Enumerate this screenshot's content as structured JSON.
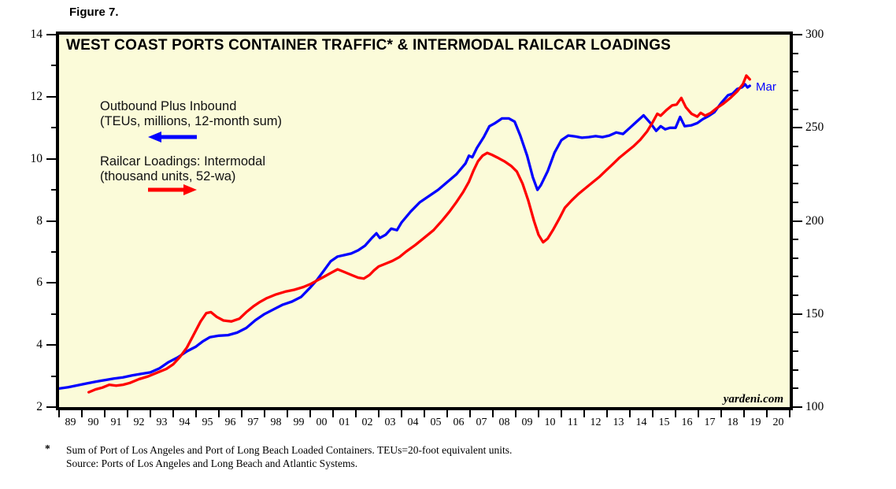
{
  "figure_label": "Figure 7.",
  "chart_data": {
    "type": "line",
    "title": "WEST COAST PORTS CONTAINER TRAFFIC* & INTERMODAL RAILCAR LOADINGS",
    "plot_bg_color": "#FBFBD9",
    "watermark": "yardeni.com",
    "x_axis": {
      "start_year": 1989,
      "end_year": 2021,
      "labels": [
        "89",
        "90",
        "91",
        "92",
        "93",
        "94",
        "95",
        "96",
        "97",
        "98",
        "99",
        "00",
        "01",
        "02",
        "03",
        "04",
        "05",
        "06",
        "07",
        "08",
        "09",
        "10",
        "11",
        "12",
        "13",
        "14",
        "15",
        "16",
        "17",
        "18",
        "19",
        "20"
      ]
    },
    "left_axis": {
      "min": 2,
      "max": 14,
      "major_ticks": [
        2,
        4,
        6,
        8,
        10,
        12,
        14
      ],
      "minor_step": 1
    },
    "right_axis": {
      "min": 100,
      "max": 300,
      "major_ticks": [
        100,
        150,
        200,
        250,
        300
      ],
      "minor_step": 10
    },
    "annotations": [
      {
        "text": "Mar",
        "color": "#0000FF"
      }
    ],
    "series": [
      {
        "name": "west-coast-ports-container-traffic",
        "legend_lines": [
          "Outbound Plus Inbound",
          "(TEUs, millions, 12-month sum)"
        ],
        "axis": "left",
        "color": "#0000FF",
        "arrow_direction": "left",
        "points": [
          [
            1989.0,
            2.6
          ],
          [
            1989.4,
            2.64
          ],
          [
            1989.8,
            2.7
          ],
          [
            1990.2,
            2.76
          ],
          [
            1990.6,
            2.82
          ],
          [
            1991.0,
            2.87
          ],
          [
            1991.4,
            2.92
          ],
          [
            1991.8,
            2.96
          ],
          [
            1992.2,
            3.02
          ],
          [
            1992.6,
            3.07
          ],
          [
            1993.0,
            3.12
          ],
          [
            1993.4,
            3.25
          ],
          [
            1993.8,
            3.45
          ],
          [
            1994.2,
            3.6
          ],
          [
            1994.6,
            3.8
          ],
          [
            1995.0,
            3.95
          ],
          [
            1995.3,
            4.12
          ],
          [
            1995.6,
            4.25
          ],
          [
            1996.0,
            4.3
          ],
          [
            1996.4,
            4.32
          ],
          [
            1996.8,
            4.4
          ],
          [
            1997.2,
            4.55
          ],
          [
            1997.6,
            4.8
          ],
          [
            1998.0,
            5.0
          ],
          [
            1998.4,
            5.15
          ],
          [
            1998.8,
            5.3
          ],
          [
            1999.2,
            5.4
          ],
          [
            1999.6,
            5.55
          ],
          [
            2000.0,
            5.85
          ],
          [
            2000.3,
            6.1
          ],
          [
            2000.6,
            6.4
          ],
          [
            2000.9,
            6.7
          ],
          [
            2001.2,
            6.85
          ],
          [
            2001.5,
            6.9
          ],
          [
            2001.8,
            6.95
          ],
          [
            2002.1,
            7.05
          ],
          [
            2002.4,
            7.2
          ],
          [
            2002.7,
            7.45
          ],
          [
            2002.9,
            7.6
          ],
          [
            2003.05,
            7.45
          ],
          [
            2003.3,
            7.55
          ],
          [
            2003.55,
            7.75
          ],
          [
            2003.8,
            7.7
          ],
          [
            2004.0,
            7.95
          ],
          [
            2004.4,
            8.3
          ],
          [
            2004.8,
            8.6
          ],
          [
            2005.2,
            8.8
          ],
          [
            2005.6,
            9.0
          ],
          [
            2006.0,
            9.25
          ],
          [
            2006.4,
            9.5
          ],
          [
            2006.8,
            9.85
          ],
          [
            2006.95,
            10.1
          ],
          [
            2007.1,
            10.05
          ],
          [
            2007.3,
            10.35
          ],
          [
            2007.6,
            10.7
          ],
          [
            2007.85,
            11.05
          ],
          [
            2008.1,
            11.15
          ],
          [
            2008.4,
            11.3
          ],
          [
            2008.7,
            11.3
          ],
          [
            2008.95,
            11.2
          ],
          [
            2009.2,
            10.75
          ],
          [
            2009.5,
            10.1
          ],
          [
            2009.75,
            9.4
          ],
          [
            2009.95,
            9.0
          ],
          [
            2010.1,
            9.15
          ],
          [
            2010.4,
            9.6
          ],
          [
            2010.7,
            10.2
          ],
          [
            2011.0,
            10.6
          ],
          [
            2011.3,
            10.75
          ],
          [
            2011.6,
            10.72
          ],
          [
            2011.9,
            10.68
          ],
          [
            2012.2,
            10.7
          ],
          [
            2012.5,
            10.73
          ],
          [
            2012.8,
            10.7
          ],
          [
            2013.1,
            10.75
          ],
          [
            2013.4,
            10.85
          ],
          [
            2013.7,
            10.8
          ],
          [
            2014.0,
            11.0
          ],
          [
            2014.3,
            11.2
          ],
          [
            2014.6,
            11.4
          ],
          [
            2014.9,
            11.15
          ],
          [
            2015.15,
            10.9
          ],
          [
            2015.35,
            11.05
          ],
          [
            2015.55,
            10.95
          ],
          [
            2015.75,
            11.0
          ],
          [
            2016.0,
            11.0
          ],
          [
            2016.2,
            11.35
          ],
          [
            2016.4,
            11.05
          ],
          [
            2016.7,
            11.08
          ],
          [
            2016.95,
            11.15
          ],
          [
            2017.2,
            11.28
          ],
          [
            2017.45,
            11.38
          ],
          [
            2017.7,
            11.5
          ],
          [
            2018.0,
            11.8
          ],
          [
            2018.3,
            12.05
          ],
          [
            2018.5,
            12.1
          ],
          [
            2018.7,
            12.25
          ],
          [
            2018.9,
            12.3
          ],
          [
            2019.05,
            12.4
          ],
          [
            2019.15,
            12.3
          ],
          [
            2019.25,
            12.35
          ]
        ]
      },
      {
        "name": "intermodal-railcar-loadings",
        "legend_lines": [
          "Railcar Loadings: Intermodal",
          "(thousand units, 52-wa)"
        ],
        "axis": "right",
        "color": "#FF0000",
        "arrow_direction": "right",
        "points": [
          [
            1990.3,
            108
          ],
          [
            1990.6,
            109.5
          ],
          [
            1990.9,
            110.5
          ],
          [
            1991.2,
            112
          ],
          [
            1991.5,
            111.5
          ],
          [
            1991.8,
            112
          ],
          [
            1992.1,
            113
          ],
          [
            1992.5,
            115
          ],
          [
            1992.9,
            116.5
          ],
          [
            1993.3,
            118.5
          ],
          [
            1993.7,
            120.5
          ],
          [
            1994.0,
            123
          ],
          [
            1994.3,
            127
          ],
          [
            1994.6,
            132
          ],
          [
            1994.9,
            139
          ],
          [
            1995.2,
            146
          ],
          [
            1995.45,
            150.5
          ],
          [
            1995.65,
            151
          ],
          [
            1995.9,
            148.5
          ],
          [
            1996.2,
            146.5
          ],
          [
            1996.55,
            146
          ],
          [
            1996.9,
            147.5
          ],
          [
            1997.2,
            151
          ],
          [
            1997.5,
            154
          ],
          [
            1997.8,
            156.5
          ],
          [
            1998.1,
            158.5
          ],
          [
            1998.5,
            160.5
          ],
          [
            1998.9,
            162
          ],
          [
            1999.3,
            163
          ],
          [
            1999.7,
            164.5
          ],
          [
            2000.0,
            166
          ],
          [
            2000.3,
            168
          ],
          [
            2000.6,
            170
          ],
          [
            2000.9,
            172
          ],
          [
            2001.2,
            174
          ],
          [
            2001.5,
            172.5
          ],
          [
            2001.8,
            171
          ],
          [
            2002.1,
            169.5
          ],
          [
            2002.35,
            169
          ],
          [
            2002.6,
            171
          ],
          [
            2002.8,
            173.5
          ],
          [
            2003.0,
            175.5
          ],
          [
            2003.3,
            177
          ],
          [
            2003.6,
            178.5
          ],
          [
            2003.9,
            180.5
          ],
          [
            2004.2,
            183.5
          ],
          [
            2004.6,
            187
          ],
          [
            2005.0,
            191
          ],
          [
            2005.4,
            195
          ],
          [
            2005.8,
            200.5
          ],
          [
            2006.1,
            205
          ],
          [
            2006.4,
            210
          ],
          [
            2006.7,
            215.5
          ],
          [
            2006.95,
            221
          ],
          [
            2007.15,
            227
          ],
          [
            2007.35,
            232
          ],
          [
            2007.55,
            235
          ],
          [
            2007.75,
            236.5
          ],
          [
            2007.95,
            235.5
          ],
          [
            2008.2,
            234
          ],
          [
            2008.5,
            232
          ],
          [
            2008.8,
            229.5
          ],
          [
            2009.05,
            226.5
          ],
          [
            2009.3,
            220
          ],
          [
            2009.55,
            211
          ],
          [
            2009.8,
            200
          ],
          [
            2010.0,
            192.5
          ],
          [
            2010.2,
            188.5
          ],
          [
            2010.4,
            190.5
          ],
          [
            2010.65,
            195.5
          ],
          [
            2010.9,
            201
          ],
          [
            2011.15,
            207
          ],
          [
            2011.45,
            211
          ],
          [
            2011.75,
            214.5
          ],
          [
            2012.05,
            217.5
          ],
          [
            2012.35,
            220.5
          ],
          [
            2012.65,
            223.5
          ],
          [
            2012.95,
            227
          ],
          [
            2013.25,
            230.5
          ],
          [
            2013.55,
            234
          ],
          [
            2013.85,
            237
          ],
          [
            2014.15,
            240
          ],
          [
            2014.45,
            243.5
          ],
          [
            2014.75,
            248
          ],
          [
            2015.0,
            253
          ],
          [
            2015.2,
            257.5
          ],
          [
            2015.35,
            256.5
          ],
          [
            2015.6,
            259.5
          ],
          [
            2015.85,
            262
          ],
          [
            2016.05,
            262.5
          ],
          [
            2016.25,
            266
          ],
          [
            2016.45,
            261
          ],
          [
            2016.7,
            257.5
          ],
          [
            2016.95,
            256
          ],
          [
            2017.1,
            258
          ],
          [
            2017.3,
            256.5
          ],
          [
            2017.55,
            258
          ],
          [
            2017.8,
            260.5
          ],
          [
            2018.1,
            263
          ],
          [
            2018.4,
            266
          ],
          [
            2018.7,
            269.5
          ],
          [
            2018.95,
            273.5
          ],
          [
            2019.1,
            278
          ],
          [
            2019.25,
            276
          ]
        ]
      }
    ]
  },
  "footnote": {
    "marker": "*",
    "lines": [
      "Sum of Port of Los Angeles and Port of Long Beach Loaded Containers. TEUs=20-foot equivalent units.",
      "Source: Ports of Los Angeles and Long Beach and Atlantic Systems."
    ]
  }
}
